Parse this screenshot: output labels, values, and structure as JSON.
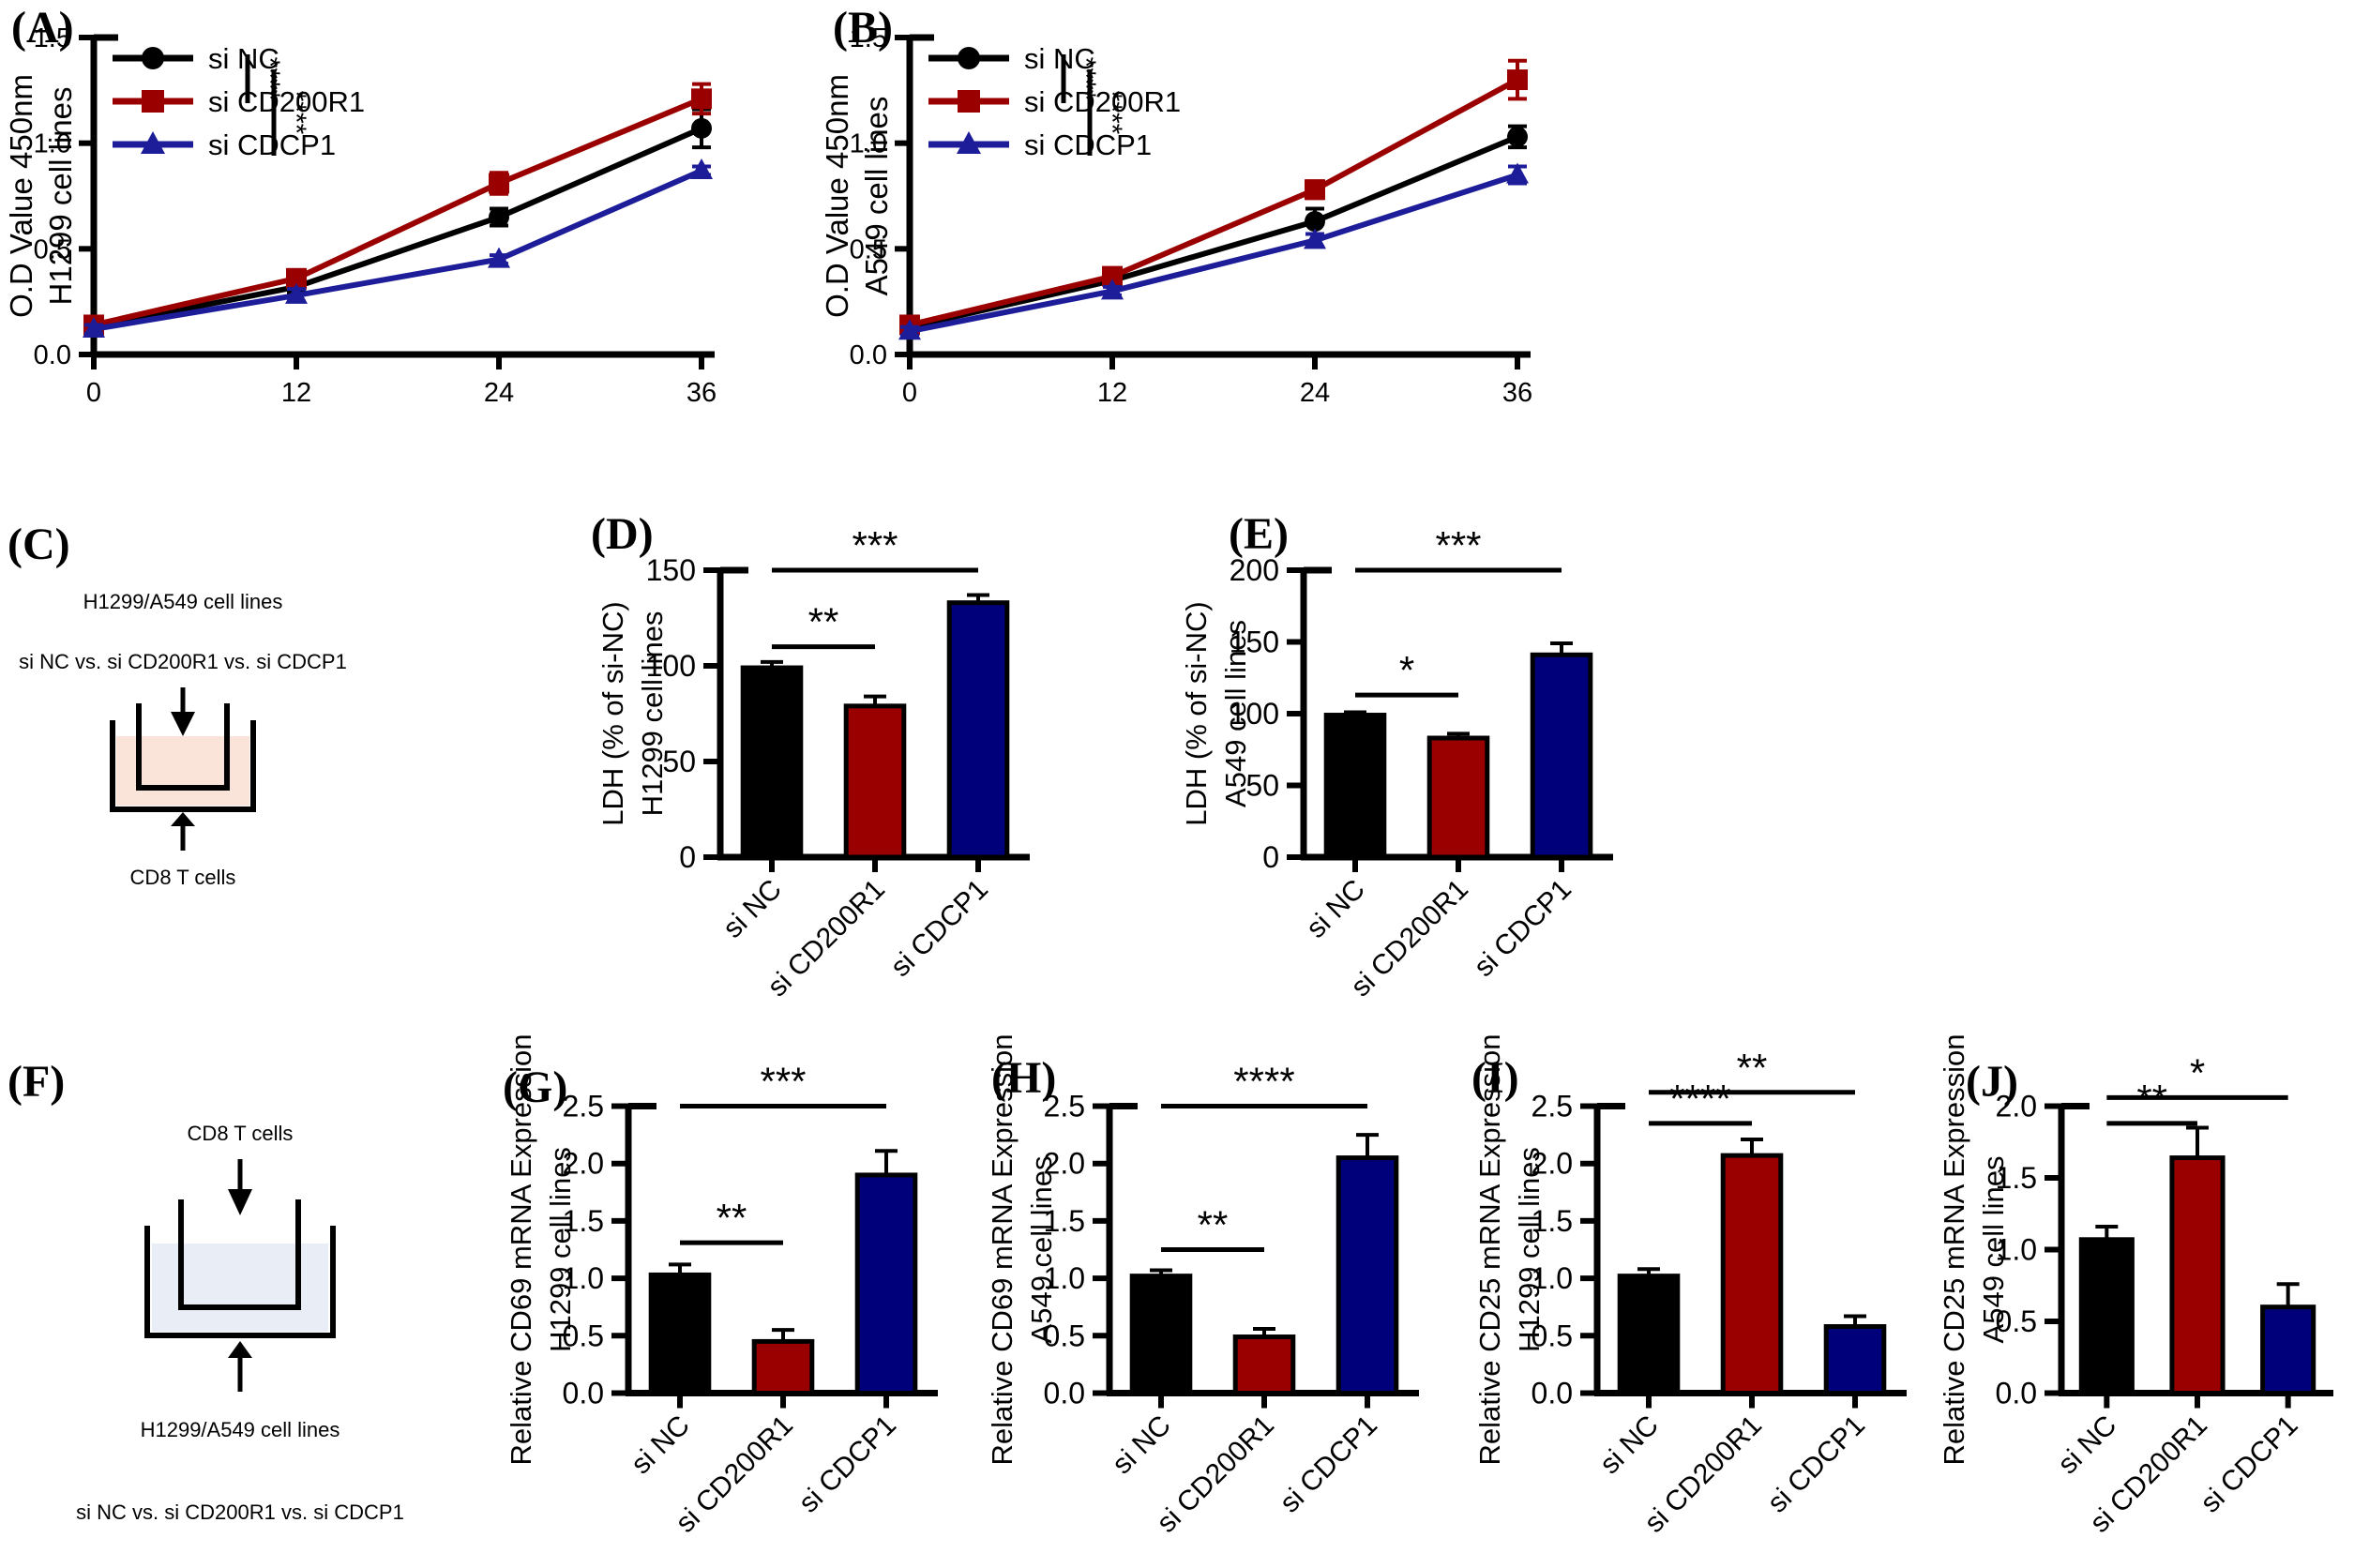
{
  "colors": {
    "black": "#000000",
    "dark_red": "#9B0000",
    "navy_bar": "#00007B",
    "line_blue": "#1D1D99",
    "transwell_liquid_peach": "#FAE3D8",
    "transwell_liquid_blue": "#E9EDF5"
  },
  "chart_data": [
    {
      "panel_label": "(A)",
      "type": "line",
      "ylabel_lines": [
        "O.D Value 450nm",
        "H1299 cell lines"
      ],
      "x": [
        0,
        12,
        24,
        36
      ],
      "xtick_labels": [
        "0",
        "12",
        "24",
        "36"
      ],
      "ytick_labels": [
        "0.0",
        "0.5",
        "1.0",
        "1.5"
      ],
      "ylim": [
        0,
        1.5
      ],
      "legend_position": "inside-top-left",
      "series": [
        {
          "name": "si NC",
          "color": "#000000",
          "marker": "circle",
          "values": [
            0.13,
            0.32,
            0.65,
            1.07
          ],
          "errors": [
            0.02,
            0.03,
            0.04,
            0.09
          ]
        },
        {
          "name": "si CD200R1",
          "color": "#9B0000",
          "marker": "square",
          "values": [
            0.14,
            0.36,
            0.81,
            1.21
          ],
          "errors": [
            0.02,
            0.04,
            0.05,
            0.07
          ]
        },
        {
          "name": "si CDCP1",
          "color": "#1D1D99",
          "marker": "triangle",
          "values": [
            0.12,
            0.28,
            0.45,
            0.87
          ],
          "errors": [
            0.02,
            0.03,
            0.02,
            0.02
          ]
        }
      ],
      "significance": [
        {
          "label": "****",
          "between": [
            "si NC",
            "si CD200R1"
          ]
        },
        {
          "label": "****",
          "between": [
            "si NC",
            "si CDCP1"
          ]
        }
      ]
    },
    {
      "panel_label": "(B)",
      "type": "line",
      "ylabel_lines": [
        "O.D Value 450nm",
        "A549 cell lines"
      ],
      "x": [
        0,
        12,
        24,
        36
      ],
      "xtick_labels": [
        "0",
        "12",
        "24",
        "36"
      ],
      "ytick_labels": [
        "0.0",
        "0.5",
        "1.0",
        "1.5"
      ],
      "ylim": [
        0,
        1.5
      ],
      "legend_position": "inside-top-left",
      "series": [
        {
          "name": "si NC",
          "color": "#000000",
          "marker": "circle",
          "values": [
            0.13,
            0.35,
            0.63,
            1.03
          ],
          "errors": [
            0.02,
            0.02,
            0.06,
            0.05
          ]
        },
        {
          "name": "si CD200R1",
          "color": "#9B0000",
          "marker": "square",
          "values": [
            0.14,
            0.37,
            0.78,
            1.3
          ],
          "errors": [
            0.02,
            0.02,
            0.04,
            0.09
          ]
        },
        {
          "name": "si CDCP1",
          "color": "#1D1D99",
          "marker": "triangle",
          "values": [
            0.11,
            0.3,
            0.54,
            0.85
          ],
          "errors": [
            0.02,
            0.02,
            0.03,
            0.04
          ]
        }
      ],
      "significance": [
        {
          "label": "****",
          "between": [
            "si NC",
            "si CD200R1"
          ]
        },
        {
          "label": "****",
          "between": [
            "si NC",
            "si CDCP1"
          ]
        }
      ]
    },
    {
      "panel_label": "(C)",
      "type": "diagram",
      "top_labels": [
        "H1299/A549 cell lines",
        "si NC vs. si CD200R1 vs. si CDCP1"
      ],
      "bottom_labels": [
        "CD8 T cells"
      ],
      "liquid_color": "#FAE3D8"
    },
    {
      "panel_label": "(D)",
      "type": "bar",
      "ylabel_lines": [
        "LDH (% of si-NC)",
        "H1299 cell lines"
      ],
      "categories": [
        "si NC",
        "si CD200R1",
        "si CDCP1"
      ],
      "values": [
        99,
        79,
        133
      ],
      "errors": [
        3,
        5,
        4
      ],
      "bar_colors": [
        "#000000",
        "#9B0000",
        "#00007B"
      ],
      "ytick_labels": [
        "0",
        "50",
        "100",
        "150"
      ],
      "ylim": [
        0,
        150
      ],
      "significance": [
        {
          "label": "**",
          "from": 0,
          "to": 1,
          "y": 110
        },
        {
          "label": "***",
          "from": 0,
          "to": 2,
          "y": 150
        }
      ]
    },
    {
      "panel_label": "(E)",
      "type": "bar",
      "ylabel_lines": [
        "LDH (% of si-NC)",
        "A549 cell lines"
      ],
      "categories": [
        "si NC",
        "si CD200R1",
        "si CDCP1"
      ],
      "values": [
        99,
        83,
        141
      ],
      "errors": [
        2,
        3,
        8
      ],
      "bar_colors": [
        "#000000",
        "#9B0000",
        "#00007B"
      ],
      "ytick_labels": [
        "0",
        "50",
        "100",
        "150",
        "200"
      ],
      "ylim": [
        0,
        200
      ],
      "significance": [
        {
          "label": "*",
          "from": 0,
          "to": 1,
          "y": 113
        },
        {
          "label": "***",
          "from": 0,
          "to": 2,
          "y": 200
        }
      ]
    },
    {
      "panel_label": "(F)",
      "type": "diagram",
      "top_labels": [
        "CD8 T cells"
      ],
      "bottom_labels": [
        "H1299/A549 cell lines",
        "si NC vs. si CD200R1 vs. si CDCP1"
      ],
      "liquid_color": "#E9EDF5"
    },
    {
      "panel_label": "(G)",
      "type": "bar",
      "ylabel_lines": [
        "Relative CD69 mRNA Expression",
        "H1299 cell lines"
      ],
      "categories": [
        "si NC",
        "si CD200R1",
        "si CDCP1"
      ],
      "values": [
        1.03,
        0.45,
        1.9
      ],
      "errors": [
        0.09,
        0.1,
        0.21
      ],
      "bar_colors": [
        "#000000",
        "#9B0000",
        "#00007B"
      ],
      "ytick_labels": [
        "0.0",
        "0.5",
        "1.0",
        "1.5",
        "2.0",
        "2.5"
      ],
      "ylim": [
        0,
        2.5
      ],
      "significance": [
        {
          "label": "**",
          "from": 0,
          "to": 1,
          "y": 1.31
        },
        {
          "label": "***",
          "from": 0,
          "to": 2,
          "y": 2.5
        }
      ]
    },
    {
      "panel_label": "(H)",
      "type": "bar",
      "ylabel_lines": [
        "Relative CD69 mRNA Expression",
        "A549 cell lines"
      ],
      "categories": [
        "si NC",
        "si CD200R1",
        "si CDCP1"
      ],
      "values": [
        1.02,
        0.49,
        2.05
      ],
      "errors": [
        0.05,
        0.07,
        0.2
      ],
      "bar_colors": [
        "#000000",
        "#9B0000",
        "#00007B"
      ],
      "ytick_labels": [
        "0.0",
        "0.5",
        "1.0",
        "1.5",
        "2.0",
        "2.5"
      ],
      "ylim": [
        0,
        2.5
      ],
      "significance": [
        {
          "label": "**",
          "from": 0,
          "to": 1,
          "y": 1.25
        },
        {
          "label": "****",
          "from": 0,
          "to": 2,
          "y": 2.5
        }
      ]
    },
    {
      "panel_label": "(I)",
      "type": "bar",
      "ylabel_lines": [
        "Relative CD25 mRNA Expression",
        "H1299 cell lines"
      ],
      "categories": [
        "si NC",
        "si CD200R1",
        "si CDCP1"
      ],
      "values": [
        1.02,
        2.07,
        0.58
      ],
      "errors": [
        0.06,
        0.14,
        0.09
      ],
      "bar_colors": [
        "#000000",
        "#9B0000",
        "#00007B"
      ],
      "ytick_labels": [
        "0.0",
        "0.5",
        "1.0",
        "1.5",
        "2.0",
        "2.5"
      ],
      "ylim": [
        0,
        2.5
      ],
      "significance": [
        {
          "label": "****",
          "from": 0,
          "to": 1,
          "y": 2.35
        },
        {
          "label": "**",
          "from": 0,
          "to": 2,
          "y": 2.62
        }
      ]
    },
    {
      "panel_label": "(J)",
      "type": "bar",
      "ylabel_lines": [
        "Relative CD25 mRNA Expression",
        "A549 cell lines"
      ],
      "categories": [
        "si NC",
        "si CD200R1",
        "si CDCP1"
      ],
      "values": [
        1.07,
        1.64,
        0.6
      ],
      "errors": [
        0.09,
        0.21,
        0.16
      ],
      "bar_colors": [
        "#000000",
        "#9B0000",
        "#00007B"
      ],
      "ytick_labels": [
        "0.0",
        "0.5",
        "1.0",
        "1.5",
        "2.0"
      ],
      "ylim": [
        0,
        2
      ],
      "significance": [
        {
          "label": "**",
          "from": 0,
          "to": 1,
          "y": 1.88
        },
        {
          "label": "*",
          "from": 0,
          "to": 2,
          "y": 2.06
        }
      ]
    }
  ]
}
